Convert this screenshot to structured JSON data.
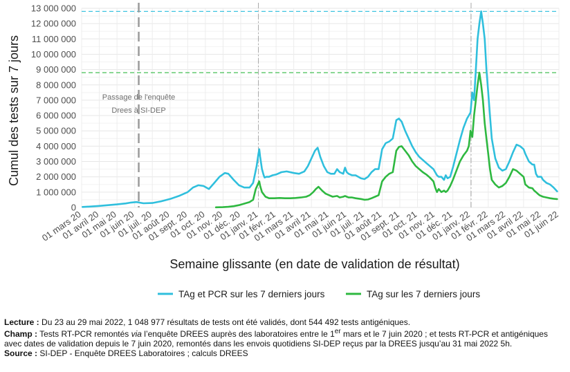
{
  "chart_data": {
    "type": "line",
    "title": "",
    "xlabel": "Semaine glissante (en date de validation de résultat)",
    "ylabel": "Cumul des tests sur 7 jours",
    "ylim": [
      0,
      13000000
    ],
    "yticks": [
      0,
      1000000,
      2000000,
      3000000,
      4000000,
      5000000,
      6000000,
      7000000,
      8000000,
      9000000,
      10000000,
      11000000,
      12000000,
      13000000
    ],
    "ytick_labels": [
      "0",
      "1 000 000",
      "2 000 000",
      "3 000 000",
      "4 000 000",
      "5 000 000",
      "6 000 000",
      "7 000 000",
      "8 000 000",
      "9 000 000",
      "10 000 000",
      "11 000 000",
      "12 000 000",
      "13 000 000"
    ],
    "xlim": [
      0,
      27
    ],
    "x_unit": "mois (0 = 01 mars 20)",
    "xticks": [
      0,
      1,
      2,
      3,
      4,
      5,
      6,
      7,
      8,
      9,
      10,
      11,
      12,
      13,
      14,
      15,
      16,
      17,
      18,
      19,
      20,
      21,
      22,
      23,
      24,
      25,
      26,
      27
    ],
    "xtick_labels": [
      "01 mars 20",
      "01 avril 20",
      "01 mai 20",
      "01 juin 20",
      "01 juil. 20",
      "01 août 20",
      "01 sept. 20",
      "01 oct. 20",
      "01 nov. 20",
      "01 déc. 20",
      "01 janv. 21",
      "01 févr. 21",
      "01 mars 21",
      "01 avril 21",
      "01 mai 21",
      "01 juin 21",
      "01 juil. 21",
      "01 août 21",
      "01 sept. 21",
      "01 oct. 21",
      "01 nov. 21",
      "01 déc. 21",
      "01 janv. 22",
      "01 févr. 22",
      "01 mars 22",
      "01 avril 22",
      "01 mai 22",
      "01 juin 22"
    ],
    "grid": true,
    "legend_position": "bottom",
    "series": [
      {
        "name": "TAg et PCR sur les 7 derniers jours",
        "color": "#2fbfdd",
        "x": [
          0.05,
          0.5,
          1.0,
          1.5,
          2.0,
          2.5,
          2.8,
          3.1,
          3.3,
          3.5,
          4.0,
          4.5,
          5.0,
          5.5,
          6.0,
          6.3,
          6.6,
          6.9,
          7.2,
          7.5,
          7.8,
          8.1,
          8.3,
          8.6,
          8.9,
          9.2,
          9.5,
          9.7,
          9.9,
          10.0,
          10.05,
          10.1,
          10.2,
          10.3,
          10.35,
          10.45,
          10.6,
          10.8,
          11.0,
          11.3,
          11.6,
          12.0,
          12.3,
          12.6,
          12.8,
          13.0,
          13.2,
          13.35,
          13.5,
          13.7,
          13.9,
          14.1,
          14.3,
          14.45,
          14.6,
          14.8,
          14.9,
          15.0,
          15.1,
          15.3,
          15.5,
          15.8,
          16.0,
          16.2,
          16.4,
          16.6,
          16.8,
          17.0,
          17.2,
          17.4,
          17.6,
          17.8,
          17.95,
          18.1,
          18.3,
          18.5,
          18.7,
          18.9,
          19.1,
          19.3,
          19.5,
          19.7,
          19.9,
          20.0,
          20.1,
          20.2,
          20.35,
          20.5,
          20.6,
          20.7,
          20.85,
          21.0,
          21.2,
          21.4,
          21.6,
          21.8,
          21.9,
          22.0,
          22.1,
          22.2,
          22.3,
          22.4,
          22.5,
          22.6,
          22.7,
          22.8,
          22.9,
          23.0,
          23.1,
          23.2,
          23.4,
          23.6,
          23.8,
          24.0,
          24.2,
          24.4,
          24.6,
          24.8,
          25.0,
          25.1,
          25.3,
          25.5,
          25.6,
          25.7,
          25.8,
          25.9,
          26.0,
          26.1,
          26.3,
          26.5,
          26.7,
          26.9
        ],
        "y": [
          30000,
          60000,
          100000,
          150000,
          200000,
          260000,
          320000,
          350000,
          310000,
          270000,
          290000,
          400000,
          550000,
          750000,
          1000000,
          1300000,
          1450000,
          1400000,
          1200000,
          1600000,
          2000000,
          2250000,
          2200000,
          1800000,
          1450000,
          1300000,
          1300000,
          1600000,
          2700000,
          3500000,
          3800000,
          3300000,
          2500000,
          2100000,
          1950000,
          2000000,
          2000000,
          2100000,
          2150000,
          2300000,
          2350000,
          2250000,
          2200000,
          2350000,
          2700000,
          3200000,
          3700000,
          3900000,
          3300000,
          2700000,
          2300000,
          2200000,
          2200000,
          2500000,
          2300000,
          2200000,
          2600000,
          2300000,
          2200000,
          2100000,
          2100000,
          1900000,
          1850000,
          2000000,
          2300000,
          2500000,
          2500000,
          3800000,
          4200000,
          4300000,
          4500000,
          5700000,
          5800000,
          5600000,
          5000000,
          4500000,
          4000000,
          3600000,
          3300000,
          3100000,
          2900000,
          2700000,
          2500000,
          2300000,
          2100000,
          2000000,
          2000000,
          1800000,
          2100000,
          1900000,
          2000000,
          2600000,
          3500000,
          4400000,
          5200000,
          5800000,
          6000000,
          6200000,
          7500000,
          7000000,
          9000000,
          11000000,
          12000000,
          12800000,
          12000000,
          11000000,
          9000000,
          7500000,
          6000000,
          4500000,
          3200000,
          2600000,
          2400000,
          2500000,
          3000000,
          3600000,
          4100000,
          4000000,
          3800000,
          3500000,
          3000000,
          2800000,
          2800000,
          2200000,
          2000000,
          2000000,
          2000000,
          1800000,
          1600000,
          1500000,
          1300000,
          1050000
        ]
      },
      {
        "name": "TAg sur les 7 derniers jours",
        "color": "#2eb840",
        "x": [
          7.6,
          8.0,
          8.3,
          8.6,
          8.9,
          9.2,
          9.5,
          9.7,
          9.85,
          10.0,
          10.05,
          10.1,
          10.2,
          10.4,
          10.6,
          10.9,
          11.2,
          11.5,
          11.8,
          12.1,
          12.4,
          12.7,
          12.9,
          13.1,
          13.25,
          13.4,
          13.6,
          13.8,
          14.0,
          14.2,
          14.45,
          14.6,
          14.8,
          14.9,
          15.0,
          15.1,
          15.3,
          15.5,
          15.8,
          16.0,
          16.2,
          16.4,
          16.6,
          16.8,
          17.0,
          17.2,
          17.4,
          17.6,
          17.8,
          17.95,
          18.1,
          18.3,
          18.5,
          18.7,
          18.9,
          19.1,
          19.3,
          19.5,
          19.7,
          19.9,
          20.0,
          20.1,
          20.2,
          20.35,
          20.5,
          20.6,
          20.7,
          20.85,
          21.0,
          21.2,
          21.4,
          21.6,
          21.8,
          21.9,
          22.0,
          22.1,
          22.2,
          22.3,
          22.4,
          22.5,
          22.6,
          22.7,
          22.8,
          22.9,
          23.0,
          23.1,
          23.2,
          23.4,
          23.6,
          23.8,
          24.0,
          24.2,
          24.4,
          24.6,
          24.8,
          25.0,
          25.1,
          25.3,
          25.5,
          25.6,
          25.7,
          25.8,
          25.9,
          26.0,
          26.1,
          26.3,
          26.5,
          26.7,
          26.9
        ],
        "y": [
          10000,
          20000,
          40000,
          80000,
          150000,
          250000,
          350000,
          500000,
          1200000,
          1600000,
          1700000,
          1400000,
          1000000,
          700000,
          600000,
          600000,
          620000,
          600000,
          600000,
          620000,
          650000,
          700000,
          800000,
          1000000,
          1200000,
          1350000,
          1100000,
          900000,
          800000,
          700000,
          750000,
          650000,
          700000,
          750000,
          700000,
          650000,
          650000,
          600000,
          550000,
          500000,
          520000,
          600000,
          700000,
          800000,
          1700000,
          2000000,
          2200000,
          2300000,
          3700000,
          3950000,
          4000000,
          3700000,
          3400000,
          3000000,
          2700000,
          2500000,
          2300000,
          2150000,
          1950000,
          1700000,
          1300000,
          1000000,
          1200000,
          1000000,
          1100000,
          1000000,
          1100000,
          1400000,
          1800000,
          2400000,
          3000000,
          3400000,
          3700000,
          4000000,
          5000000,
          4600000,
          6000000,
          7000000,
          8000000,
          8800000,
          8000000,
          7000000,
          5500000,
          4500000,
          3500000,
          2500000,
          1800000,
          1500000,
          1300000,
          1400000,
          1600000,
          2000000,
          2500000,
          2400000,
          2200000,
          2000000,
          1500000,
          1300000,
          1250000,
          1100000,
          1000000,
          900000,
          800000,
          750000,
          700000,
          650000,
          600000,
          570000,
          544000
        ]
      }
    ],
    "reference_lines": {
      "horizontal": [
        {
          "y": 12800000,
          "color": "#2fbfdd"
        },
        {
          "y": 8800000,
          "color": "#2eb840"
        }
      ],
      "vertical": [
        {
          "x": 3.23,
          "style": "long-dash",
          "color": "#9a9a9a"
        },
        {
          "x": 10.0,
          "style": "dash-dot",
          "color": "#a8a8a8"
        },
        {
          "x": 22.03,
          "style": "dash-dot",
          "color": "#a8a8a8"
        }
      ]
    },
    "annotation": {
      "line1": "Passage de l'enquête",
      "line2": "Drees à SI-DEP",
      "x": 3.23,
      "y": 6500000
    }
  },
  "notes": {
    "lecture_label": "Lecture :",
    "lecture_text": " Du 23 au 29 mai 2022, 1 048 977 résultats de tests ont été validés, dont 544 492 tests antigéniques.",
    "champ_label": "Champ :",
    "champ_text_a": " Tests RT-PCR remontés ",
    "champ_via": "via",
    "champ_text_b": " l’enquête DREES auprès des laboratoires entre le 1",
    "champ_sup": "er",
    "champ_text_c": " mars et le 7 juin 2020 ; et tests RT-PCR et antigéniques avec dates de validation depuis le 7 juin 2020, remontés dans les envois quotidiens SI-DEP reçus par la DREES jusqu’au 31 mai 2022 5h.",
    "source_label": "Source :",
    "source_text": " SI-DEP - Enquête DREES Laboratoires ; calculs DREES"
  }
}
